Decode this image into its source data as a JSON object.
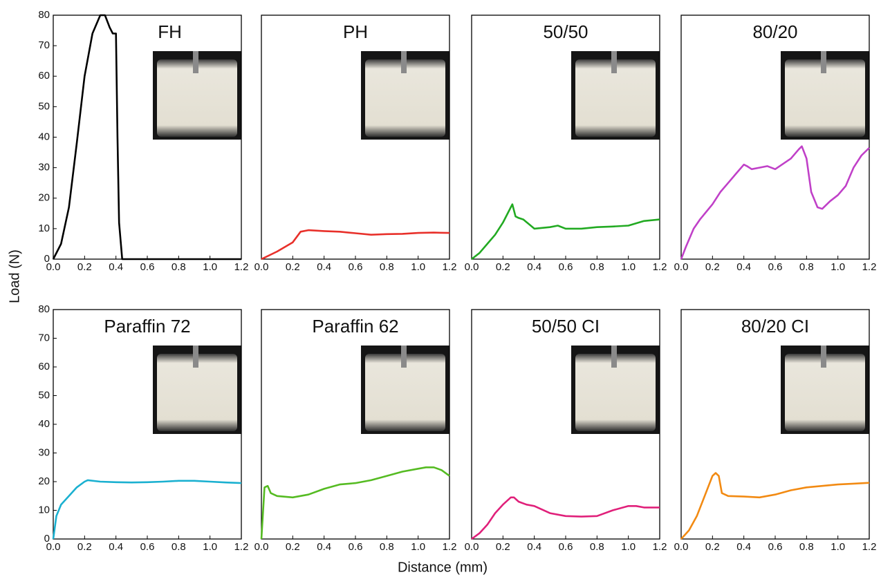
{
  "y_label": "Load (N)",
  "x_label": "Distance (mm)",
  "chart_data": [
    {
      "type": "line",
      "title": "FH",
      "xlim": [
        0,
        1.2
      ],
      "ylim": [
        0,
        80
      ],
      "xticks": [
        {
          "value": 0,
          "label": "0.0"
        },
        {
          "value": 0.2,
          "label": "0.2"
        },
        {
          "value": 0.4,
          "label": "0.4"
        },
        {
          "value": 0.6,
          "label": "0.6"
        },
        {
          "value": 0.8,
          "label": "0.8"
        },
        {
          "value": 1,
          "label": "1.0"
        },
        {
          "value": 1.2,
          "label": "1.2"
        }
      ],
      "yticks": [
        0,
        10,
        20,
        30,
        40,
        50,
        60,
        70,
        80
      ],
      "x": [
        0,
        0.05,
        0.1,
        0.15,
        0.2,
        0.25,
        0.3,
        0.33,
        0.36,
        0.38,
        0.4,
        0.41,
        0.42,
        0.44,
        1.2
      ],
      "series": [
        {
          "color": "#000000",
          "values": [
            0,
            5,
            17,
            38,
            60,
            74,
            80,
            80,
            76,
            74,
            74,
            40,
            12,
            0,
            0
          ]
        }
      ]
    },
    {
      "type": "line",
      "title": "PH",
      "xlim": [
        0,
        1.2
      ],
      "ylim": [
        0,
        80
      ],
      "xticks": [
        {
          "value": 0,
          "label": "0.0"
        },
        {
          "value": 0.2,
          "label": "0.2"
        },
        {
          "value": 0.4,
          "label": "0.4"
        },
        {
          "value": 0.6,
          "label": "0.6"
        },
        {
          "value": 0.8,
          "label": "0.8"
        },
        {
          "value": 1,
          "label": "1.0"
        },
        {
          "value": 1.2,
          "label": "1.2"
        }
      ],
      "x": [
        0,
        0.1,
        0.2,
        0.25,
        0.3,
        0.4,
        0.5,
        0.6,
        0.7,
        0.8,
        0.9,
        1.0,
        1.1,
        1.2
      ],
      "series": [
        {
          "color": "#e8302a",
          "values": [
            0,
            2.5,
            5.5,
            9,
            9.5,
            9.2,
            9,
            8.5,
            8,
            8.2,
            8.3,
            8.6,
            8.7,
            8.6
          ]
        }
      ]
    },
    {
      "type": "line",
      "title": "50/50",
      "xlim": [
        0,
        1.2
      ],
      "ylim": [
        0,
        80
      ],
      "xticks": [
        {
          "value": 0,
          "label": "0.0"
        },
        {
          "value": 0.2,
          "label": "0.2"
        },
        {
          "value": 0.4,
          "label": "0.4"
        },
        {
          "value": 0.6,
          "label": "0.6"
        },
        {
          "value": 0.8,
          "label": "0.8"
        },
        {
          "value": 1,
          "label": "1.0"
        },
        {
          "value": 1.2,
          "label": "1.2"
        }
      ],
      "x": [
        0,
        0.05,
        0.1,
        0.15,
        0.2,
        0.24,
        0.26,
        0.28,
        0.3,
        0.33,
        0.4,
        0.5,
        0.55,
        0.6,
        0.7,
        0.8,
        0.9,
        1.0,
        1.1,
        1.2
      ],
      "series": [
        {
          "color": "#22aa22",
          "values": [
            0,
            2,
            5,
            8,
            12,
            16,
            18,
            14,
            13.5,
            13,
            10,
            10.5,
            11,
            10,
            10,
            10.5,
            10.7,
            11,
            12.5,
            13
          ]
        }
      ]
    },
    {
      "type": "line",
      "title": "80/20",
      "xlim": [
        0,
        1.2
      ],
      "ylim": [
        0,
        80
      ],
      "xticks": [
        {
          "value": 0,
          "label": "0.0"
        },
        {
          "value": 0.2,
          "label": "0.2"
        },
        {
          "value": 0.4,
          "label": "0.4"
        },
        {
          "value": 0.6,
          "label": "0.6"
        },
        {
          "value": 0.8,
          "label": "0.8"
        },
        {
          "value": 1,
          "label": "1.0"
        },
        {
          "value": 1.2,
          "label": "1.2"
        }
      ],
      "x": [
        0,
        0.03,
        0.08,
        0.12,
        0.2,
        0.25,
        0.3,
        0.35,
        0.4,
        0.42,
        0.45,
        0.5,
        0.55,
        0.6,
        0.7,
        0.75,
        0.77,
        0.8,
        0.83,
        0.87,
        0.9,
        0.95,
        1.0,
        1.05,
        1.1,
        1.15,
        1.2
      ],
      "series": [
        {
          "color": "#c040c8",
          "values": [
            0,
            4,
            10,
            13,
            18,
            22,
            25,
            28,
            31,
            30.5,
            29.5,
            30,
            30.5,
            29.5,
            33,
            36,
            37,
            33,
            22,
            17,
            16.5,
            19,
            21,
            24,
            30,
            34,
            36.5
          ]
        }
      ]
    },
    {
      "type": "line",
      "title": "Paraffin 72",
      "xlim": [
        0,
        1.2
      ],
      "ylim": [
        0,
        80
      ],
      "xticks": [
        {
          "value": 0,
          "label": "0.0"
        },
        {
          "value": 0.2,
          "label": "0.2"
        },
        {
          "value": 0.4,
          "label": "0.4"
        },
        {
          "value": 0.6,
          "label": "0.6"
        },
        {
          "value": 0.8,
          "label": "0.8"
        },
        {
          "value": 1,
          "label": "1.0"
        },
        {
          "value": 1.2,
          "label": "1.2"
        }
      ],
      "yticks": [
        0,
        10,
        20,
        30,
        40,
        50,
        60,
        70,
        80
      ],
      "x": [
        0,
        0.02,
        0.05,
        0.1,
        0.15,
        0.2,
        0.22,
        0.3,
        0.4,
        0.5,
        0.6,
        0.7,
        0.8,
        0.9,
        1.0,
        1.1,
        1.2
      ],
      "series": [
        {
          "color": "#1ab0d0",
          "values": [
            0,
            8,
            12,
            15,
            18,
            20,
            20.5,
            20,
            19.8,
            19.7,
            19.8,
            20,
            20.3,
            20.3,
            20,
            19.7,
            19.5
          ]
        }
      ]
    },
    {
      "type": "line",
      "title": "Paraffin 62",
      "xlim": [
        0,
        1.2
      ],
      "ylim": [
        0,
        80
      ],
      "xticks": [
        {
          "value": 0,
          "label": "0.0"
        },
        {
          "value": 0.2,
          "label": "0.2"
        },
        {
          "value": 0.4,
          "label": "0.4"
        },
        {
          "value": 0.6,
          "label": "0.6"
        },
        {
          "value": 0.8,
          "label": "0.8"
        },
        {
          "value": 1,
          "label": "1.0"
        },
        {
          "value": 1.2,
          "label": "1.2"
        }
      ],
      "x": [
        0,
        0.02,
        0.04,
        0.06,
        0.08,
        0.1,
        0.2,
        0.3,
        0.4,
        0.5,
        0.6,
        0.7,
        0.8,
        0.9,
        1.0,
        1.05,
        1.1,
        1.15,
        1.2
      ],
      "series": [
        {
          "color": "#55bb22",
          "values": [
            0,
            18,
            18.5,
            16,
            15.5,
            15,
            14.5,
            15.5,
            17.5,
            19,
            19.5,
            20.5,
            22,
            23.5,
            24.5,
            25,
            25,
            24,
            22
          ]
        }
      ]
    },
    {
      "type": "line",
      "title": "50/50 CI",
      "xlim": [
        0,
        1.2
      ],
      "ylim": [
        0,
        80
      ],
      "xticks": [
        {
          "value": 0,
          "label": "0.0"
        },
        {
          "value": 0.2,
          "label": "0.2"
        },
        {
          "value": 0.4,
          "label": "0.4"
        },
        {
          "value": 0.6,
          "label": "0.6"
        },
        {
          "value": 0.8,
          "label": "0.8"
        },
        {
          "value": 1,
          "label": "1.0"
        },
        {
          "value": 1.2,
          "label": "1.2"
        }
      ],
      "x": [
        0,
        0.05,
        0.1,
        0.15,
        0.2,
        0.25,
        0.27,
        0.3,
        0.35,
        0.4,
        0.5,
        0.6,
        0.7,
        0.8,
        0.9,
        1.0,
        1.05,
        1.1,
        1.2
      ],
      "series": [
        {
          "color": "#e0207a",
          "values": [
            0,
            2,
            5,
            9,
            12,
            14.5,
            14.5,
            13,
            12,
            11.5,
            9,
            8,
            7.8,
            8,
            10,
            11.5,
            11.5,
            11,
            11
          ]
        }
      ]
    },
    {
      "type": "line",
      "title": "80/20 CI",
      "xlim": [
        0,
        1.2
      ],
      "ylim": [
        0,
        80
      ],
      "xticks": [
        {
          "value": 0,
          "label": "0.0"
        },
        {
          "value": 0.2,
          "label": "0.2"
        },
        {
          "value": 0.4,
          "label": "0.4"
        },
        {
          "value": 0.6,
          "label": "0.6"
        },
        {
          "value": 0.8,
          "label": "0.8"
        },
        {
          "value": 1,
          "label": "1.0"
        },
        {
          "value": 1.2,
          "label": "1.2"
        }
      ],
      "x": [
        0,
        0.05,
        0.1,
        0.15,
        0.2,
        0.22,
        0.24,
        0.26,
        0.3,
        0.4,
        0.5,
        0.6,
        0.7,
        0.8,
        0.9,
        1.0,
        1.1,
        1.2
      ],
      "series": [
        {
          "color": "#f28a12",
          "values": [
            0,
            3,
            8,
            15,
            22,
            23,
            22,
            16,
            15,
            14.8,
            14.5,
            15.5,
            17,
            18,
            18.5,
            19,
            19.3,
            19.6
          ]
        }
      ]
    }
  ]
}
